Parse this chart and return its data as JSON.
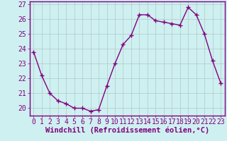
{
  "hours": [
    0,
    1,
    2,
    3,
    4,
    5,
    6,
    7,
    8,
    9,
    10,
    11,
    12,
    13,
    14,
    15,
    16,
    17,
    18,
    19,
    20,
    21,
    22,
    23
  ],
  "values": [
    23.8,
    22.2,
    21.0,
    20.5,
    20.3,
    20.0,
    20.0,
    19.8,
    19.9,
    21.5,
    23.0,
    24.3,
    24.9,
    26.3,
    26.3,
    25.9,
    25.8,
    25.7,
    25.6,
    26.8,
    26.3,
    25.0,
    23.2,
    21.7
  ],
  "line_color": "#800080",
  "marker": "+",
  "marker_size": 4,
  "linewidth": 1.0,
  "bg_color": "#cff0f0",
  "grid_color": "#b0c8c8",
  "xlabel": "Windchill (Refroidissement éolien,°C)",
  "ylim": [
    19.5,
    27.2
  ],
  "yticks": [
    20,
    21,
    22,
    23,
    24,
    25,
    26,
    27
  ],
  "xlabel_fontsize": 7.5,
  "tick_fontsize": 7,
  "spine_color": "#800080",
  "bottom_bar_color": "#800080",
  "bottom_bar_height": 0.12
}
